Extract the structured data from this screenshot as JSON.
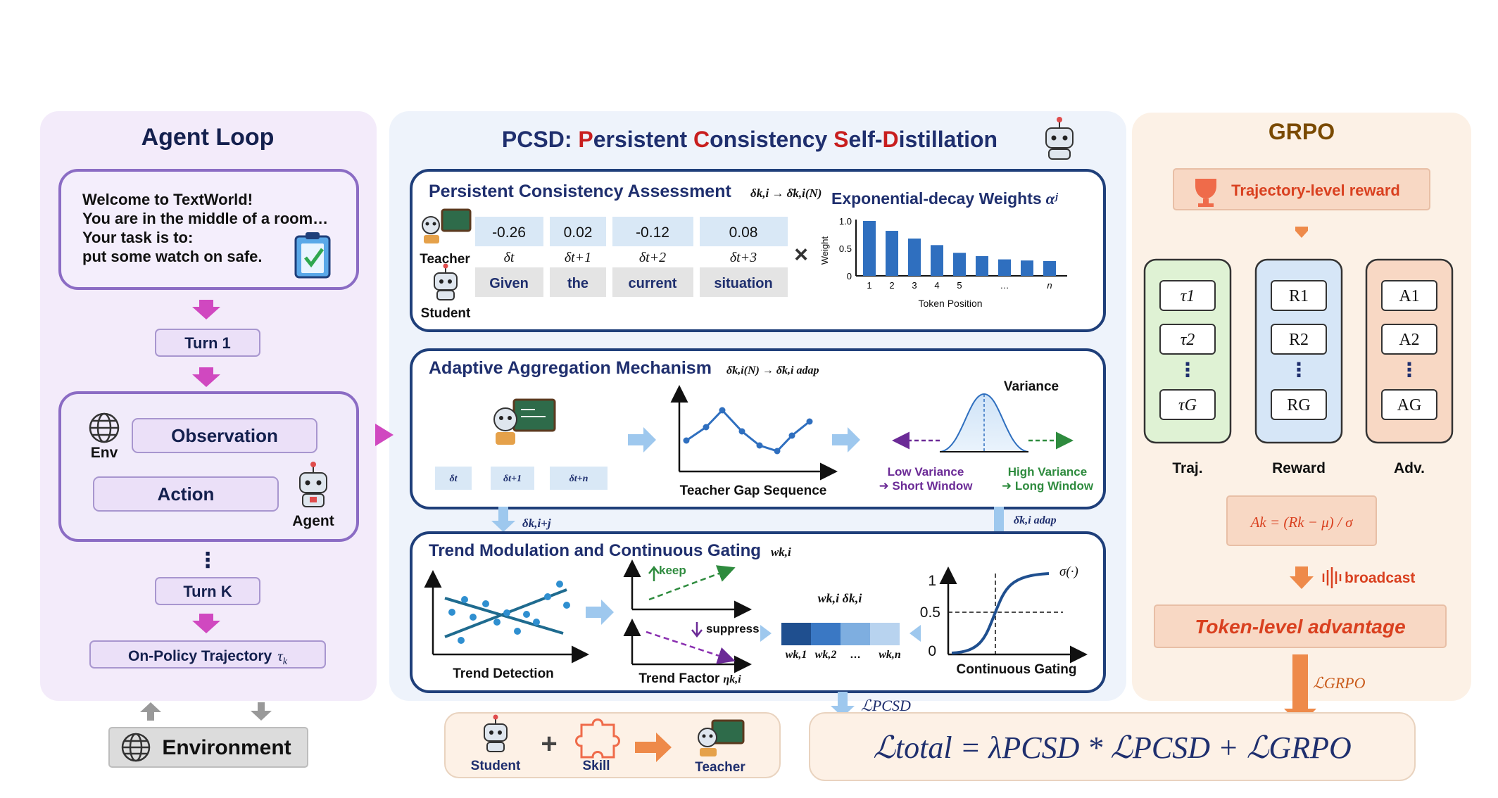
{
  "colors": {
    "agent_panel": "#f3ebfa",
    "pcsd_panel": "#eef3fb",
    "grpo_panel": "#fcf1e6",
    "navy": "#1f2f6e",
    "red": "#c81e1e",
    "magenta": "#c040b8",
    "orange": "#ee8a4a",
    "brown": "#7a4a00",
    "bar_blue": "#2f6fbf"
  },
  "agent_loop": {
    "title": "Agent Loop",
    "welcome": {
      "line1": "Welcome to TextWorld!",
      "line2": "You are in the middle of a room…",
      "line3": "Your task is to:",
      "line4": "put some watch on safe."
    },
    "turn1": "Turn 1",
    "env_label": "Env",
    "observation": "Observation",
    "action": "Action",
    "agent_label": "Agent",
    "dots": "⋮",
    "turnk": "Turn K",
    "trajectory": "On-Policy Trajectory",
    "trajectory_sym": "τ",
    "trajectory_sub": "k",
    "environment": "Environment"
  },
  "pcsd": {
    "title_prefix": "PCSD: ",
    "title_p": "P",
    "title_ersistent": "ersistent ",
    "title_c": "C",
    "title_onsistency": "onsistency  ",
    "title_s": "S",
    "title_elf": "elf-",
    "title_d": "D",
    "title_istillation": "istillation",
    "assessment": {
      "title": "Persistent Consistency Assessment",
      "formula": "δk,i → δ̄k,i(N)",
      "teacher": "Teacher",
      "student": "Student",
      "values": [
        "-0.26",
        "0.02",
        "-0.12",
        "0.08"
      ],
      "deltas": [
        "δt",
        "δt+1",
        "δt+2",
        "δt+3"
      ],
      "tokens": [
        "Given",
        "the",
        "current",
        "situation"
      ],
      "times": "×",
      "weights_title": "Exponential-decay Weights",
      "weights_sym": "αʲ"
    },
    "aggregation": {
      "title": "Adaptive Aggregation Mechanism",
      "formula": "δ̄k,i(N) → δ̄k,i adap",
      "chips": [
        "δt",
        "δt+1",
        "δt+n"
      ],
      "gap_label": "Teacher Gap Sequence",
      "variance": "Variance",
      "low_variance": "Low Variance",
      "short_window": "Short Window",
      "high_variance": "High Variance",
      "long_window": "Long Window"
    },
    "arrow_label_left": "δk,i+j",
    "arrow_label_right": "δ̄k,i adap",
    "trend": {
      "title": "Trend Modulation and Continuous Gating",
      "title_sym": "wk,i",
      "detection": "Trend Detection",
      "keep": "keep",
      "suppress": "suppress",
      "factor": "Trend Factor",
      "factor_sym": "ηk,i",
      "weights_label": "wk,i δk,i",
      "wlabels": [
        "wk,1",
        "wk,2",
        "…",
        "wk,n"
      ],
      "sigma": "σ(·)",
      "gate_ticks": [
        "1",
        "0.5",
        "0"
      ],
      "gating": "Continuous Gating"
    },
    "loss_pcsd": "ℒPCSD",
    "skill_row": {
      "student": "Student",
      "plus": "+",
      "skill": "Skill",
      "teacher": "Teacher"
    }
  },
  "grpo": {
    "title": "GRPO",
    "reward_btn": "Trajectory-level reward",
    "traj": [
      "τ1",
      "τ2",
      "⋮",
      "τG"
    ],
    "rewards": [
      "R1",
      "R2",
      "⋮",
      "RG"
    ],
    "advs": [
      "A1",
      "A2",
      "⋮",
      "AG"
    ],
    "col_traj": "Traj.",
    "col_reward": "Reward",
    "col_adv": "Adv.",
    "adv_formula": "Ak = (Rk − μ) / σ",
    "broadcast": "broadcast",
    "token_adv": "Token-level advantage",
    "loss_grpo": "ℒGRPO"
  },
  "total_loss": "ℒtotal = λPCSD * ℒPCSD + ℒGRPO",
  "chart_data": {
    "type": "bar",
    "title": "",
    "xlabel": "Token Position",
    "ylabel": "Weight",
    "categories": [
      "1",
      "2",
      "3",
      "4",
      "5",
      "",
      "…",
      "",
      "n"
    ],
    "values": [
      1.0,
      0.82,
      0.68,
      0.56,
      0.42,
      0.36,
      0.3,
      0.28,
      0.27
    ],
    "yticks": [
      "0",
      "0.5",
      "1.0"
    ],
    "ylim": [
      0,
      1.0
    ]
  }
}
